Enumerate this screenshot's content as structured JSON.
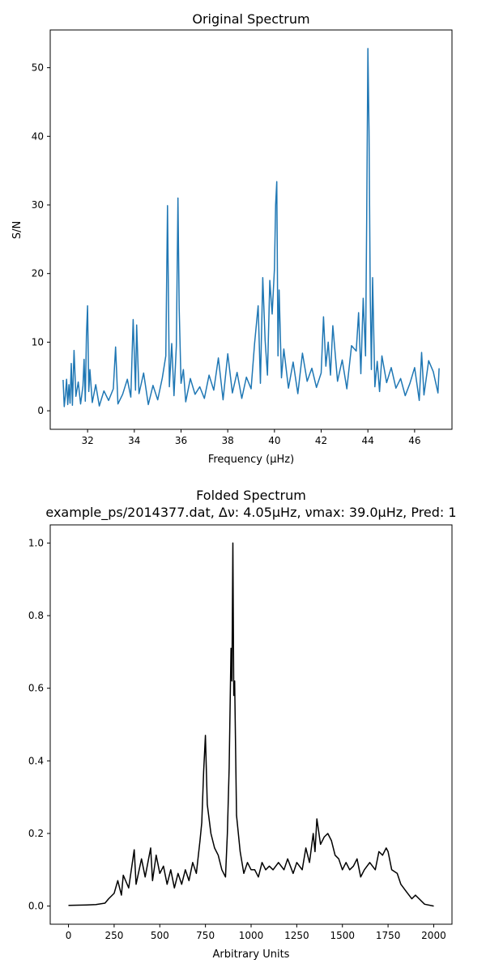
{
  "chart_data": [
    {
      "type": "line",
      "title": "Original Spectrum",
      "xlabel": "Frequency (μHz)",
      "ylabel": "S/N",
      "xlim": [
        30.4,
        47.6
      ],
      "ylim": [
        -2.7,
        55.5
      ],
      "xticks": [
        32,
        34,
        36,
        38,
        40,
        42,
        44,
        46
      ],
      "xtick_labels": [
        "32",
        "34",
        "36",
        "38",
        "40",
        "42",
        "44",
        "46"
      ],
      "yticks": [
        0,
        10,
        20,
        30,
        40,
        50
      ],
      "ytick_labels": [
        "0",
        "10",
        "20",
        "30",
        "40",
        "50"
      ],
      "grid": false,
      "color": "#1f77b4",
      "series": [
        {
          "x": [
            30.95,
            31.0,
            31.05,
            31.1,
            31.15,
            31.2,
            31.25,
            31.3,
            31.35,
            31.42,
            31.5,
            31.6,
            31.7,
            31.8,
            31.85,
            31.9,
            31.95,
            32.0,
            32.05,
            32.1,
            32.2,
            32.35,
            32.5,
            32.7,
            32.9,
            33.1,
            33.2,
            33.3,
            33.5,
            33.7,
            33.85,
            33.95,
            34.05,
            34.1,
            34.2,
            34.4,
            34.6,
            34.8,
            35.0,
            35.2,
            35.35,
            35.42,
            35.5,
            35.6,
            35.7,
            35.8,
            35.87,
            35.92,
            36.0,
            36.1,
            36.2,
            36.4,
            36.6,
            36.8,
            37.0,
            37.2,
            37.4,
            37.6,
            37.8,
            38.0,
            38.2,
            38.4,
            38.6,
            38.8,
            39.0,
            39.15,
            39.3,
            39.4,
            39.5,
            39.6,
            39.7,
            39.8,
            39.9,
            40.0,
            40.05,
            40.1,
            40.15,
            40.2,
            40.3,
            40.4,
            40.6,
            40.8,
            41.0,
            41.2,
            41.4,
            41.6,
            41.8,
            42.0,
            42.1,
            42.2,
            42.3,
            42.4,
            42.5,
            42.7,
            42.9,
            43.1,
            43.3,
            43.5,
            43.6,
            43.7,
            43.8,
            43.9,
            43.95,
            44.0,
            44.05,
            44.1,
            44.15,
            44.2,
            44.3,
            44.4,
            44.5,
            44.6,
            44.8,
            45.0,
            45.2,
            45.4,
            45.6,
            45.8,
            46.0,
            46.2,
            46.3,
            46.4,
            46.6,
            46.8,
            47.0,
            47.05
          ],
          "y": [
            4.5,
            0.6,
            2.2,
            4.6,
            0.9,
            3.8,
            1.1,
            6.9,
            0.8,
            8.8,
            2.1,
            4.2,
            1.0,
            3.6,
            7.5,
            1.4,
            10.9,
            15.3,
            2.8,
            6.0,
            1.2,
            3.8,
            0.7,
            2.9,
            1.5,
            3.2,
            9.3,
            1.0,
            2.4,
            4.6,
            2.0,
            13.3,
            3.0,
            12.5,
            2.5,
            5.5,
            0.9,
            3.7,
            1.6,
            4.8,
            8.0,
            29.9,
            3.5,
            9.8,
            2.2,
            9.4,
            31.0,
            15.0,
            4.0,
            6.0,
            1.3,
            4.7,
            2.4,
            3.5,
            1.8,
            5.2,
            3.0,
            7.7,
            1.6,
            8.3,
            2.6,
            5.6,
            1.8,
            4.9,
            3.2,
            9.8,
            15.3,
            4.0,
            19.4,
            10.3,
            5.2,
            19.0,
            14.1,
            20.6,
            30.1,
            33.4,
            8.0,
            17.6,
            4.8,
            9.0,
            3.3,
            7.1,
            2.5,
            8.4,
            4.3,
            6.2,
            3.4,
            5.5,
            13.7,
            6.5,
            10.0,
            5.2,
            12.4,
            4.3,
            7.4,
            3.2,
            9.5,
            8.7,
            14.3,
            5.4,
            16.4,
            8.0,
            27.8,
            52.8,
            40.7,
            16.7,
            6.0,
            19.4,
            3.5,
            7.2,
            2.8,
            8.0,
            4.1,
            6.3,
            3.3,
            4.7,
            2.2,
            4.0,
            6.3,
            1.5,
            8.5,
            2.3,
            7.3,
            5.7,
            2.6,
            6.2
          ]
        }
      ]
    },
    {
      "type": "line",
      "title": "Folded Spectrum",
      "subtitle": "example_ps/2014377.dat, Δν: 4.05μHz, νmax: 39.0μHz, Pred: 1",
      "xlabel": "Arbitrary Units",
      "ylabel": "",
      "xlim": [
        -100,
        2100
      ],
      "ylim": [
        -0.05,
        1.05
      ],
      "xticks": [
        0,
        250,
        500,
        750,
        1000,
        1250,
        1500,
        1750,
        2000
      ],
      "xtick_labels": [
        "0",
        "250",
        "500",
        "750",
        "1000",
        "1250",
        "1500",
        "1750",
        "2000"
      ],
      "yticks": [
        0.0,
        0.2,
        0.4,
        0.6,
        0.8,
        1.0
      ],
      "ytick_labels": [
        "0.0",
        "0.2",
        "0.4",
        "0.6",
        "0.8",
        "1.0"
      ],
      "grid": false,
      "color": "#000000",
      "series": [
        {
          "x": [
            0,
            100,
            150,
            200,
            220,
            250,
            270,
            290,
            300,
            330,
            360,
            370,
            400,
            420,
            450,
            460,
            480,
            500,
            520,
            540,
            560,
            580,
            600,
            620,
            640,
            660,
            680,
            700,
            720,
            730,
            740,
            750,
            760,
            780,
            800,
            820,
            840,
            860,
            870,
            880,
            890,
            895,
            900,
            905,
            910,
            920,
            940,
            960,
            980,
            1000,
            1020,
            1040,
            1060,
            1080,
            1100,
            1120,
            1150,
            1180,
            1200,
            1230,
            1250,
            1280,
            1300,
            1320,
            1340,
            1350,
            1360,
            1380,
            1400,
            1420,
            1440,
            1460,
            1480,
            1500,
            1520,
            1540,
            1560,
            1580,
            1600,
            1620,
            1650,
            1680,
            1700,
            1720,
            1740,
            1750,
            1770,
            1800,
            1820,
            1850,
            1880,
            1900,
            1950,
            2000
          ],
          "y": [
            0.002,
            0.003,
            0.004,
            0.008,
            0.02,
            0.035,
            0.07,
            0.03,
            0.085,
            0.05,
            0.155,
            0.06,
            0.13,
            0.08,
            0.16,
            0.07,
            0.14,
            0.09,
            0.11,
            0.06,
            0.1,
            0.05,
            0.09,
            0.06,
            0.1,
            0.07,
            0.12,
            0.09,
            0.18,
            0.23,
            0.37,
            0.47,
            0.28,
            0.2,
            0.16,
            0.14,
            0.1,
            0.08,
            0.2,
            0.38,
            0.71,
            0.62,
            1.0,
            0.58,
            0.62,
            0.25,
            0.15,
            0.09,
            0.12,
            0.1,
            0.1,
            0.08,
            0.12,
            0.1,
            0.11,
            0.1,
            0.12,
            0.1,
            0.13,
            0.09,
            0.12,
            0.1,
            0.16,
            0.12,
            0.2,
            0.15,
            0.24,
            0.17,
            0.19,
            0.2,
            0.18,
            0.14,
            0.13,
            0.1,
            0.12,
            0.1,
            0.11,
            0.13,
            0.08,
            0.1,
            0.12,
            0.1,
            0.15,
            0.14,
            0.16,
            0.15,
            0.1,
            0.09,
            0.06,
            0.04,
            0.02,
            0.03,
            0.005,
            0.0
          ]
        }
      ]
    }
  ]
}
